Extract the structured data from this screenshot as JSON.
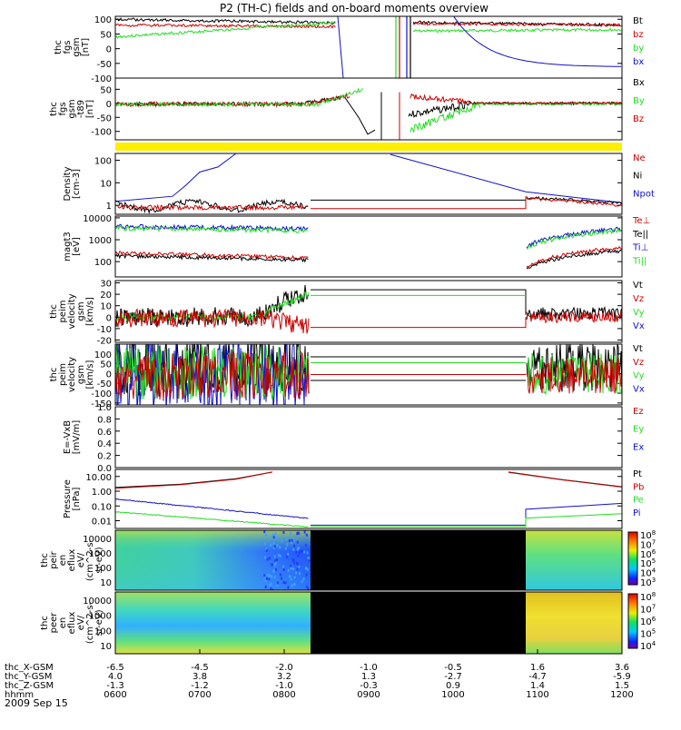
{
  "title": "P2 (TH-C) fields and on-board moments overview",
  "date_label": "2009 Sep 15",
  "colors": {
    "black": "#000000",
    "red": "#cc0000",
    "darkred": "#990000",
    "green": "#22dd22",
    "blue": "#1010cc",
    "yellow": "#ffee00"
  },
  "chart_data": [
    {
      "type": "line",
      "id": "fgs",
      "ylabel": [
        "thc",
        "fgs",
        "gsm",
        "[nT]"
      ],
      "yticks": [
        "100",
        "50",
        "0",
        "-50",
        "-100"
      ],
      "ylim": [
        -100,
        110
      ],
      "legend": [
        {
          "name": "Bt",
          "color": "#000000"
        },
        {
          "name": "bz",
          "color": "#cc0000"
        },
        {
          "name": "by",
          "color": "#22dd22"
        },
        {
          "name": "bx",
          "color": "#1010cc"
        }
      ]
    },
    {
      "type": "line",
      "id": "fgs_t89",
      "ylabel": [
        "thc",
        "fgs",
        "gsm",
        "-t89",
        "[nT]"
      ],
      "yticks": [
        "50",
        "0",
        "-50",
        "-100"
      ],
      "ylim": [
        -130,
        90
      ],
      "legend": [
        {
          "name": "Bx",
          "color": "#000000"
        },
        {
          "name": "By",
          "color": "#22dd22"
        },
        {
          "name": "Bz",
          "color": "#cc0000"
        }
      ]
    },
    {
      "type": "line",
      "id": "density",
      "ylabel": [
        "Density",
        "[cm-3]"
      ],
      "yticks": [
        "100",
        "10",
        "1"
      ],
      "ylim": [
        0.4,
        200
      ],
      "yscale": "log",
      "legend": [
        {
          "name": "Ne",
          "color": "#cc0000"
        },
        {
          "name": "Ni",
          "color": "#000000"
        },
        {
          "name": "Npot",
          "color": "#1010cc"
        }
      ]
    },
    {
      "type": "line",
      "id": "temperature",
      "ylabel": [
        "magt3",
        "[eV]"
      ],
      "yticks": [
        "10000",
        "1000",
        "100"
      ],
      "ylim": [
        20,
        12000
      ],
      "yscale": "log",
      "legend": [
        {
          "name": "Te⊥",
          "color": "#cc0000"
        },
        {
          "name": "Te||",
          "color": "#000000"
        },
        {
          "name": "Ti⊥",
          "color": "#1010cc"
        },
        {
          "name": "Ti||",
          "color": "#22dd22"
        }
      ]
    },
    {
      "type": "line",
      "id": "peim_v1",
      "ylabel": [
        "thc",
        "peim",
        "velocity",
        "gsm",
        "[km/s]"
      ],
      "yticks": [
        "30",
        "20",
        "10",
        "0",
        "-10",
        "-20"
      ],
      "ylim": [
        -22,
        32
      ],
      "legend": [
        {
          "name": "Vt",
          "color": "#000000"
        },
        {
          "name": "Vz",
          "color": "#cc0000"
        },
        {
          "name": "Vy",
          "color": "#22dd22"
        },
        {
          "name": "Vx",
          "color": "#1010cc"
        }
      ]
    },
    {
      "type": "line",
      "id": "peim_v2",
      "ylabel": [
        "thc",
        "peim",
        "velocity",
        "gsm",
        "[km/s]"
      ],
      "yticks": [
        "100",
        "50",
        "0",
        "-50",
        "-100",
        "-150"
      ],
      "ylim": [
        -160,
        150
      ],
      "legend": [
        {
          "name": "Vt",
          "color": "#000000"
        },
        {
          "name": "Vz",
          "color": "#cc0000"
        },
        {
          "name": "Vy",
          "color": "#22dd22"
        },
        {
          "name": "Vx",
          "color": "#1010cc"
        }
      ]
    },
    {
      "type": "line",
      "id": "efield",
      "ylabel": [
        "E=-VxB",
        "[mV/m]"
      ],
      "yticks": [
        "1.0",
        "0.8",
        "0.6",
        "0.4",
        "0.2",
        "0.0"
      ],
      "ylim": [
        0,
        1
      ],
      "legend": [
        {
          "name": "Ez",
          "color": "#cc0000"
        },
        {
          "name": "Ey",
          "color": "#22dd22"
        },
        {
          "name": "Ex",
          "color": "#1010cc"
        }
      ]
    },
    {
      "type": "line",
      "id": "pressure",
      "ylabel": [
        "Pressure",
        "[nPa]"
      ],
      "yticks": [
        "10.00",
        "1.00",
        "0.10",
        "0.01"
      ],
      "ylim": [
        0.003,
        30
      ],
      "yscale": "log",
      "legend": [
        {
          "name": "Pt",
          "color": "#000000"
        },
        {
          "name": "Pb",
          "color": "#cc0000"
        },
        {
          "name": "Pe",
          "color": "#22dd22"
        },
        {
          "name": "Pi",
          "color": "#1010cc"
        }
      ]
    },
    {
      "type": "heatmap",
      "id": "peir_spec",
      "ylabel": [
        "thc",
        "peir",
        "en",
        "eflux",
        "eV/",
        "(cm^2-s-",
        "sr-eV)"
      ],
      "yticks": [
        "10000",
        "1000",
        "100",
        "10"
      ],
      "colorbar_ticks": [
        "10^8",
        "10^7",
        "10^6",
        "10^5",
        "10^4",
        "10^3"
      ],
      "yscale": "log"
    },
    {
      "type": "heatmap",
      "id": "peer_spec",
      "ylabel": [
        "thc",
        "peer",
        "en",
        "eflux",
        "eV/",
        "(cm^2-s-",
        "sr-eV)"
      ],
      "yticks": [
        "10000",
        "1000",
        "100",
        "10"
      ],
      "colorbar_ticks": [
        "10^8",
        "10^7",
        "10^6",
        "10^5",
        "10^4"
      ],
      "yscale": "log"
    }
  ],
  "x_axis": {
    "row_labels": [
      "thc_X-GSM",
      "thc_Y-GSM",
      "thc_Z-GSM",
      "hhmm"
    ],
    "ticks": [
      {
        "x": "-6.5",
        "y": "4.0",
        "z": "-1.3",
        "t": "0600"
      },
      {
        "x": "-4.5",
        "y": "3.8",
        "z": "-1.2",
        "t": "0700"
      },
      {
        "x": "-2.0",
        "y": "3.2",
        "z": "-1.0",
        "t": "0800"
      },
      {
        "x": "-1.0",
        "y": "1.3",
        "z": "-0.3",
        "t": "0900"
      },
      {
        "x": "-0.5",
        "y": "-2.7",
        "z": "0.9",
        "t": "1000"
      },
      {
        "x": "1.6",
        "y": "-4.7",
        "z": "1.4",
        "t": "1100"
      },
      {
        "x": "3.6",
        "y": "-5.9",
        "z": "1.5",
        "t": "1200"
      }
    ]
  }
}
